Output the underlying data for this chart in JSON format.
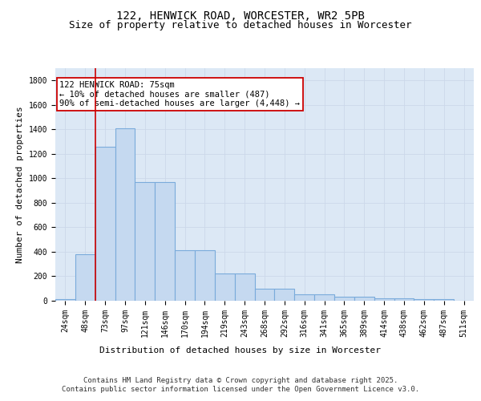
{
  "title1": "122, HENWICK ROAD, WORCESTER, WR2 5PB",
  "title2": "Size of property relative to detached houses in Worcester",
  "xlabel": "Distribution of detached houses by size in Worcester",
  "ylabel": "Number of detached properties",
  "categories": [
    "24sqm",
    "48sqm",
    "73sqm",
    "97sqm",
    "121sqm",
    "146sqm",
    "170sqm",
    "194sqm",
    "219sqm",
    "243sqm",
    "268sqm",
    "292sqm",
    "316sqm",
    "341sqm",
    "365sqm",
    "389sqm",
    "414sqm",
    "438sqm",
    "462sqm",
    "487sqm",
    "511sqm"
  ],
  "values": [
    15,
    380,
    1260,
    1410,
    970,
    970,
    410,
    410,
    225,
    225,
    100,
    100,
    50,
    50,
    30,
    30,
    20,
    20,
    10,
    10,
    3
  ],
  "bar_color": "#c5d9f0",
  "bar_edge_color": "#7aabdb",
  "grid_color": "#ccd8ea",
  "background_color": "#dce8f5",
  "vline_color": "#cc0000",
  "vline_x_index": 2,
  "annotation_text": "122 HENWICK ROAD: 75sqm\n← 10% of detached houses are smaller (487)\n90% of semi-detached houses are larger (4,448) →",
  "annotation_box_color": "#ffffff",
  "annotation_box_edge": "#cc0000",
  "ylim": [
    0,
    1900
  ],
  "yticks": [
    0,
    200,
    400,
    600,
    800,
    1000,
    1200,
    1400,
    1600,
    1800
  ],
  "footer_text": "Contains HM Land Registry data © Crown copyright and database right 2025.\nContains public sector information licensed under the Open Government Licence v3.0.",
  "title_fontsize": 10,
  "subtitle_fontsize": 9,
  "axis_label_fontsize": 8,
  "tick_fontsize": 7,
  "annotation_fontsize": 7.5,
  "footer_fontsize": 6.5
}
